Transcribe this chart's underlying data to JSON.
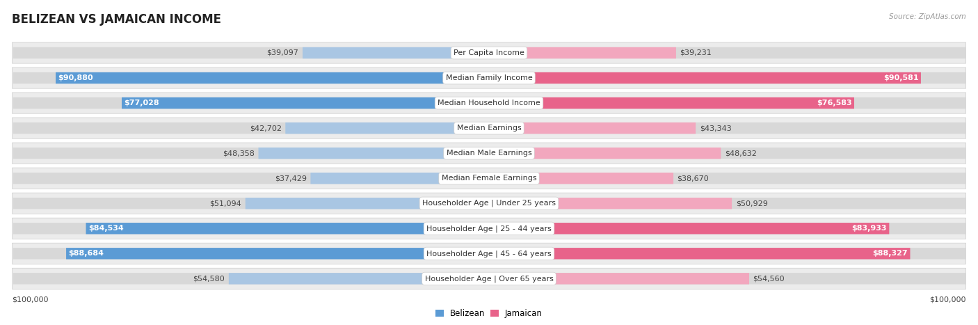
{
  "title": "BELIZEAN VS JAMAICAN INCOME",
  "source": "Source: ZipAtlas.com",
  "categories": [
    "Per Capita Income",
    "Median Family Income",
    "Median Household Income",
    "Median Earnings",
    "Median Male Earnings",
    "Median Female Earnings",
    "Householder Age | Under 25 years",
    "Householder Age | 25 - 44 years",
    "Householder Age | 45 - 64 years",
    "Householder Age | Over 65 years"
  ],
  "belizean_values": [
    39097,
    90880,
    77028,
    42702,
    48358,
    37429,
    51094,
    84534,
    88684,
    54580
  ],
  "jamaican_values": [
    39231,
    90581,
    76583,
    43343,
    48632,
    38670,
    50929,
    83933,
    88327,
    54560
  ],
  "belizean_labels": [
    "$39,097",
    "$90,880",
    "$77,028",
    "$42,702",
    "$48,358",
    "$37,429",
    "$51,094",
    "$84,534",
    "$88,684",
    "$54,580"
  ],
  "jamaican_labels": [
    "$39,231",
    "$90,581",
    "$76,583",
    "$43,343",
    "$48,632",
    "$38,670",
    "$50,929",
    "$83,933",
    "$88,327",
    "$54,560"
  ],
  "max_value": 100000,
  "belizean_color_dark": "#5b9bd5",
  "belizean_color_light": "#a9c6e3",
  "jamaican_color_dark": "#e8638a",
  "jamaican_color_light": "#f2a7be",
  "row_bg_color": "#ececec",
  "bar_bg_color": "#d8d8d8",
  "background_color": "#ffffff",
  "title_fontsize": 12,
  "label_fontsize": 8,
  "category_fontsize": 8,
  "dark_threshold": 60000,
  "figsize": [
    14.06,
    4.67
  ],
  "dpi": 100
}
